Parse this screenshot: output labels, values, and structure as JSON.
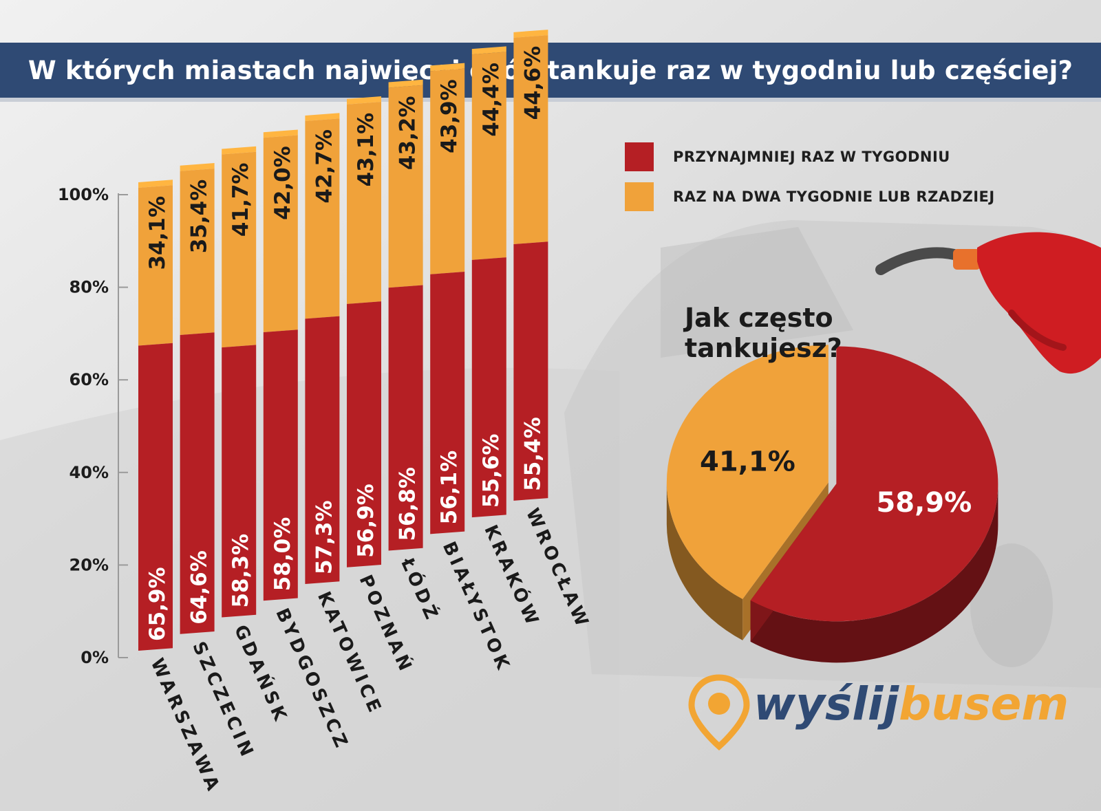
{
  "header": {
    "title": "W których miastach najwięcej osób tankuje raz w tygodniu lub częściej?"
  },
  "legend": [
    {
      "label": "PRZYNAJMNIEJ RAZ W TYGODNIU",
      "color": "#b51f24"
    },
    {
      "label": "RAZ NA DWA TYGODNIE LUB RZADZIEJ",
      "color": "#f0a23a"
    }
  ],
  "chart_data": [
    {
      "type": "bar",
      "stacked": true,
      "categories": [
        "WARSZAWA",
        "SZCZECIN",
        "GDAŃSK",
        "BYDGOSZCZ",
        "KATOWICE",
        "POZNAŃ",
        "ŁÓDŹ",
        "BIAŁYSTOK",
        "KRAKÓW",
        "WROCŁAW"
      ],
      "series": [
        {
          "name": "PRZYNAJMNIEJ RAZ W TYGODNIU",
          "values": [
            65.9,
            64.6,
            58.3,
            58.0,
            57.3,
            56.9,
            56.8,
            56.1,
            55.6,
            55.4
          ],
          "color": "#b51f24"
        },
        {
          "name": "RAZ NA DWA TYGODNIE LUB RZADZIEJ",
          "values": [
            34.1,
            35.4,
            41.7,
            42.0,
            42.7,
            43.1,
            43.2,
            43.9,
            44.4,
            44.6
          ],
          "color": "#f0a23a"
        }
      ],
      "labels_lower": [
        "65,9%",
        "64,6%",
        "58,3%",
        "58,0%",
        "57,3%",
        "56,9%",
        "56,8%",
        "56,1%",
        "55,6%",
        "55,4%"
      ],
      "labels_upper": [
        "34,1%",
        "35,4%",
        "41,7%",
        "42,0%",
        "42,7%",
        "43,1%",
        "43,2%",
        "43,9%",
        "44,4%",
        "44,6%"
      ],
      "yticks": [
        "0%",
        "20%",
        "40%",
        "60%",
        "80%",
        "100%"
      ],
      "ylim": [
        0,
        100
      ],
      "legend": "top-right"
    },
    {
      "type": "pie",
      "title": "Jak często tankujesz?",
      "slices": [
        {
          "name": "PRZYNAJMNIEJ RAZ W TYGODNIU",
          "value": 58.9,
          "label": "58,9%",
          "color": "#b51f24"
        },
        {
          "name": "RAZ NA DWA TYGODNIE LUB RZADZIEJ",
          "value": 41.1,
          "label": "41,1%",
          "color": "#f0a23a"
        }
      ]
    }
  ],
  "logo": {
    "part1": "wyślij",
    "part2": "busem"
  }
}
